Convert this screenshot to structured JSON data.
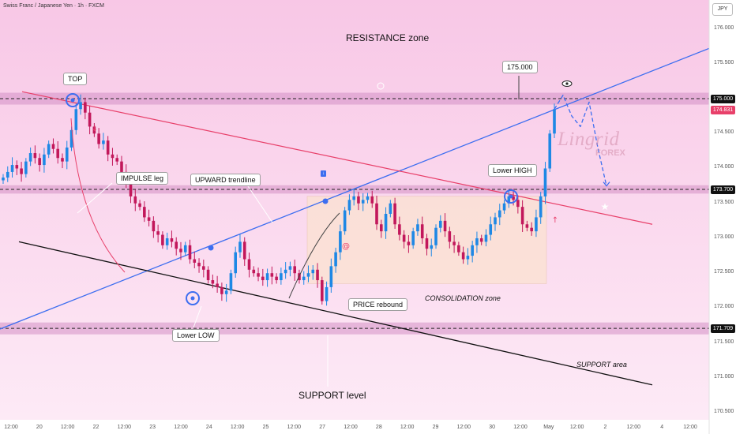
{
  "pane_title": "Swiss Franc / Japanese Yen · 1h · FXCM",
  "currency": "JPY",
  "colors": {
    "background_top": "#f8c7e6",
    "background_bottom": "#fdeaf6",
    "zone_band": "#d48fc4",
    "trend_line": "#3d6ef0",
    "downtrend_line": "#e8406a",
    "support_line": "#111111",
    "candle_up": "#1e88e5",
    "candle_down": "#c2185b",
    "consolidation_box": "#fbe3cf",
    "current_price_tag": "#e8406a"
  },
  "annotations": {
    "resistance_zone": "RESISTANCE zone",
    "top": "TOP",
    "impulse_leg": "IMPULSE leg",
    "upward_trendline": "UPWARD trendline",
    "lower_high": "Lower HIGH",
    "lower_low": "Lower LOW",
    "price_rebound": "PRICE rebound",
    "consolidation_zone": "CONSOLIDATION zone",
    "support_area": "SUPPORT area",
    "support_level": "SUPPORT level",
    "target_175": "175.000",
    "watermark_main": "Lingrid",
    "watermark_sub": "FOREX"
  },
  "price_axis": {
    "ticks": [
      "176.000",
      "175.500",
      "175.000",
      "174.500",
      "174.000",
      "173.500",
      "173.000",
      "172.500",
      "172.000",
      "171.500",
      "171.000",
      "170.500"
    ],
    "tags": [
      {
        "label": "175.000",
        "kind": "level"
      },
      {
        "label": "174.831",
        "kind": "current"
      },
      {
        "label": "173.700",
        "kind": "level"
      },
      {
        "label": "171.709",
        "kind": "level"
      }
    ]
  },
  "time_axis": [
    "12:00",
    "20",
    "12:00",
    "22",
    "12:00",
    "23",
    "12:00",
    "24",
    "12:00",
    "25",
    "12:00",
    "27",
    "12:00",
    "28",
    "12:00",
    "29",
    "12:00",
    "30",
    "12:00",
    "May",
    "12:00",
    "2",
    "12:00",
    "4",
    "12:00"
  ],
  "chart_data": {
    "type": "candlestick",
    "symbol": "CHFJPY",
    "timeframe": "1h",
    "ylim": [
      170.4,
      176.3
    ],
    "levels": [
      175.0,
      173.7,
      171.709
    ],
    "current_price": 174.831,
    "series": [
      {
        "name": "price",
        "values": [
          173.87,
          173.95,
          174.05,
          174.0,
          173.92,
          174.1,
          174.22,
          174.15,
          174.05,
          174.2,
          174.35,
          174.28,
          174.15,
          174.1,
          174.3,
          174.55,
          174.85,
          174.95,
          174.8,
          174.6,
          174.5,
          174.35,
          174.4,
          174.2,
          174.15,
          174.1,
          173.95,
          173.8,
          173.6,
          173.5,
          173.45,
          173.3,
          173.25,
          173.1,
          173.05,
          172.9,
          173.0,
          172.95,
          172.85,
          172.8,
          172.9,
          172.7,
          172.65,
          172.6,
          172.55,
          172.4,
          172.35,
          172.3,
          172.2,
          172.25,
          172.5,
          172.8,
          172.95,
          172.7,
          172.55,
          172.5,
          172.45,
          172.4,
          172.5,
          172.45,
          172.4,
          172.5,
          172.55,
          172.6,
          172.5,
          172.4,
          172.45,
          172.5,
          172.55,
          172.4,
          172.1,
          172.3,
          172.6,
          172.8,
          173.1,
          173.4,
          173.55,
          173.6,
          173.5,
          173.55,
          173.6,
          173.5,
          173.2,
          173.1,
          173.35,
          173.5,
          173.2,
          173.05,
          172.95,
          172.9,
          173.1,
          173.2,
          173.0,
          172.85,
          172.9,
          173.15,
          173.25,
          173.1,
          172.95,
          172.9,
          172.8,
          172.7,
          172.75,
          172.9,
          173.0,
          172.95,
          173.05,
          173.2,
          173.3,
          173.4,
          173.5,
          173.6,
          173.55,
          173.45,
          173.2,
          173.15,
          173.1,
          173.3,
          173.6,
          174.0,
          174.5,
          174.85
        ]
      }
    ],
    "projection": [
      174.85,
      175.05,
      174.75,
      174.6,
      174.95,
      174.3,
      173.75
    ]
  }
}
